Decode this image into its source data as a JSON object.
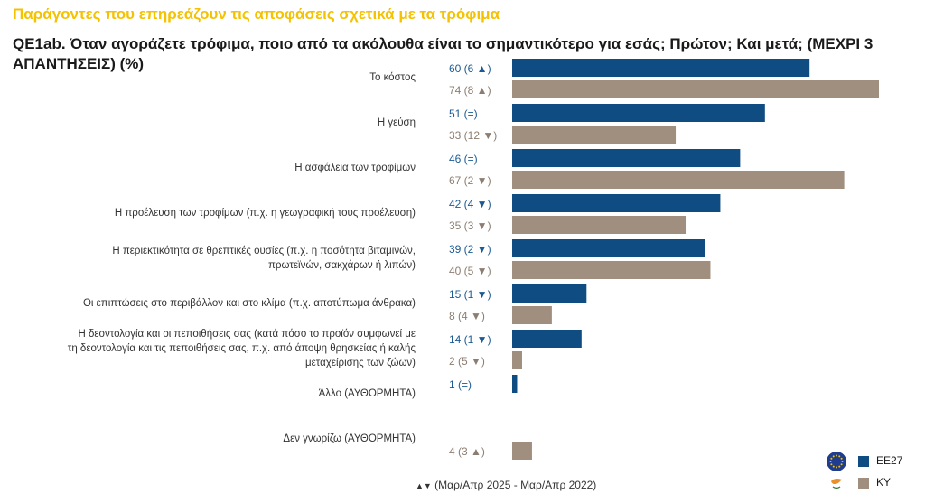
{
  "header": {
    "title": "Παράγοντες που επηρεάζουν τις αποφάσεις σχετικά με τα τρόφιμα",
    "question": "QE1ab. Όταν αγοράζετε τρόφιμα, ποιο από τα ακόλουθα είναι το σημαντικότερο για εσάς; Πρώτον; Και μετά; (ΜΕΧΡΙ 3 ΑΠΑΝΤΗΣΕΙΣ) (%)"
  },
  "colors": {
    "eu27": "#0f4c81",
    "cy": "#a08e7e",
    "title": "#f5c200",
    "eu_text": "#1b5a93",
    "cy_text": "#8c7d70"
  },
  "chart_data": {
    "type": "bar",
    "orientation": "horizontal",
    "xlim": [
      0,
      74
    ],
    "categories": [
      "Το κόστος",
      "Η γεύση",
      "Η ασφάλεια των τροφίμων",
      "Η προέλευση των τροφίμων (π.χ. η γεωγραφική τους προέλευση)",
      "Η περιεκτικότητα σε θρεπτικές ουσίες (π.χ. η ποσότητα βιταμινών, πρωτεϊνών, σακχάρων ή λιπών)",
      "Οι επιπτώσεις στο περιβάλλον και στο κλίμα (π.χ. αποτύπωμα άνθρακα)",
      "Η δεοντολογία και οι πεποιθήσεις σας (κατά πόσο το προϊόν συμφωνεί με τη δεοντολογία και τις πεποιθήσεις σας, π.χ. από άποψη θρησκείας ή καλής μεταχείρισης των ζώων)",
      "Άλλο (ΑΥΘΟΡΜΗΤΑ)",
      "Δεν γνωρίζω (ΑΥΘΟΡΜΗΤΑ)"
    ],
    "category_lines": [
      [
        "Το κόστος"
      ],
      [
        "Η γεύση"
      ],
      [
        "Η ασφάλεια των τροφίμων"
      ],
      [
        "Η προέλευση των τροφίμων (π.χ. η γεωγραφική τους προέλευση)"
      ],
      [
        "Η περιεκτικότητα σε θρεπτικές ουσίες (π.χ. η ποσότητα βιταμινών,",
        "πρωτεϊνών, σακχάρων ή λιπών)"
      ],
      [
        "Οι επιπτώσεις στο περιβάλλον και στο κλίμα (π.χ. αποτύπωμα άνθρακα)"
      ],
      [
        "Η δεοντολογία και οι πεποιθήσεις σας (κατά πόσο το προϊόν συμφωνεί με",
        "τη δεοντολογία και τις πεποιθήσεις σας, π.χ. από άποψη θρησκείας ή καλής",
        "μεταχείρισης των ζώων)"
      ],
      [
        "Άλλο (ΑΥΘΟΡΜΗΤΑ)"
      ],
      [
        "Δεν γνωρίζω (ΑΥΘΟΡΜΗΤΑ)"
      ]
    ],
    "series": [
      {
        "name": "ΕΕ27",
        "values": [
          60,
          51,
          46,
          42,
          39,
          15,
          14,
          1,
          null
        ],
        "changes": [
          "6",
          "=",
          "=",
          "4",
          "2",
          "1",
          "1",
          "=",
          null
        ],
        "directions": [
          "up",
          "same",
          "same",
          "down",
          "down",
          "down",
          "down",
          "same",
          null
        ]
      },
      {
        "name": "ΚΥ",
        "values": [
          74,
          33,
          67,
          35,
          40,
          8,
          2,
          null,
          4
        ],
        "changes": [
          "8",
          "12",
          "2",
          "3",
          "5",
          "4",
          "5",
          null,
          "3"
        ],
        "directions": [
          "up",
          "down",
          "down",
          "down",
          "down",
          "down",
          "down",
          null,
          "up"
        ]
      }
    ]
  },
  "legend": {
    "eu27_label": "ΕΕ27",
    "cy_label": "ΚΥ"
  },
  "footnote": {
    "arrows": "▲▼",
    "text": "(Μαρ/Απρ 2025 - Μαρ/Απρ 2022)"
  }
}
